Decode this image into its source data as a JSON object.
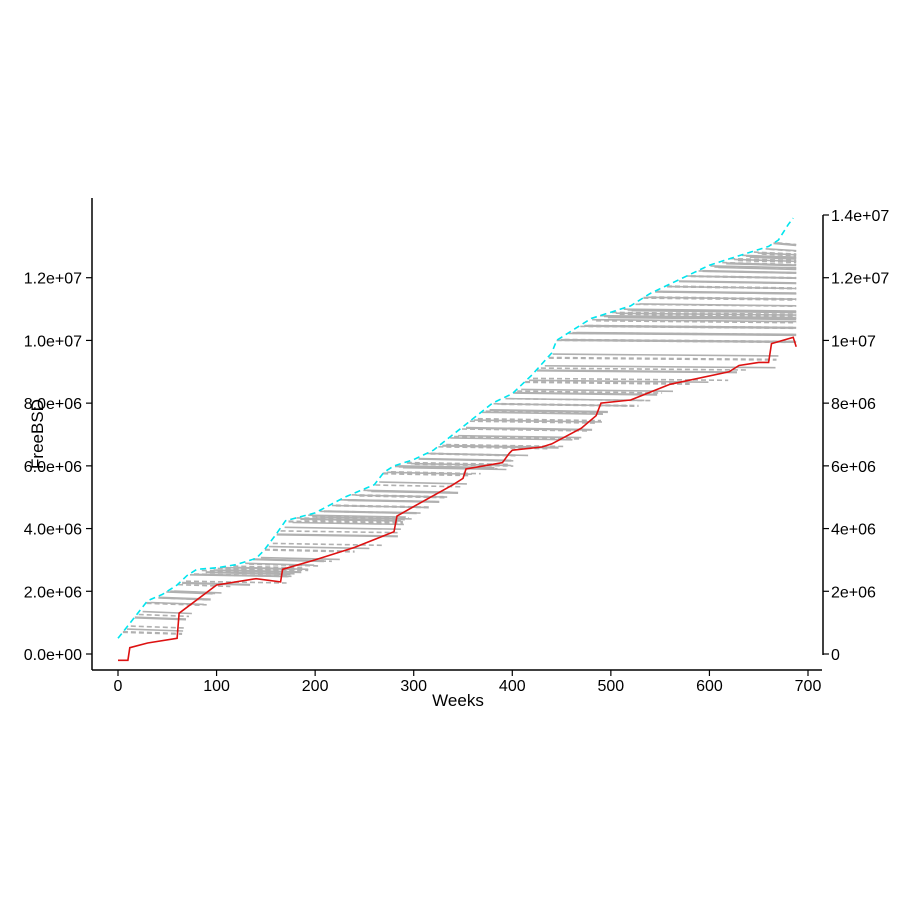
{
  "chart_data": {
    "type": "line",
    "title": "",
    "xlabel": "Weeks",
    "ylabel": "FreeBSD",
    "xlim": [
      0,
      700
    ],
    "ylim_left": [
      -600000,
      14500000
    ],
    "ylim_right": [
      -600000,
      14500000
    ],
    "x_ticks": [
      0,
      100,
      200,
      300,
      400,
      500,
      600,
      700
    ],
    "x_tick_labels": [
      "0",
      "100",
      "200",
      "300",
      "400",
      "500",
      "600",
      "700"
    ],
    "y_left_ticks": [
      0,
      2000000,
      4000000,
      6000000,
      8000000,
      10000000,
      12000000
    ],
    "y_left_tick_labels": [
      "0.0e+00",
      "2.0e+06",
      "4.0e+06",
      "6.0e+06",
      "8.0e+06",
      "1.0e+07",
      "1.2e+07"
    ],
    "y_right_ticks": [
      0,
      2000000,
      4000000,
      6000000,
      8000000,
      10000000,
      12000000,
      14000000
    ],
    "y_right_tick_labels": [
      "0",
      "2e+06",
      "4e+06",
      "6e+06",
      "8e+06",
      "1e+07",
      "1.2e+07",
      "1.4e+07"
    ],
    "grid": false,
    "legend": "none",
    "colors": {
      "cumulative": "#00e5ee",
      "release_steps": "#dd1111",
      "cohorts": "#b0b0b0",
      "axis": "#000000"
    },
    "series": [
      {
        "style": "dashed",
        "color": "#00e5ee",
        "x": [
          0,
          10,
          30,
          45,
          60,
          70,
          80,
          100,
          120,
          140,
          148,
          160,
          170,
          200,
          230,
          260,
          270,
          280,
          300,
          320,
          340,
          360,
          380,
          400,
          420,
          440,
          445,
          460,
          480,
          500,
          520,
          540,
          560,
          580,
          600,
          620,
          640,
          660,
          670,
          680,
          685
        ],
        "y": [
          500000,
          900000,
          1700000,
          1900000,
          2200000,
          2500000,
          2700000,
          2750000,
          2850000,
          3050000,
          3300000,
          3800000,
          4250000,
          4500000,
          5000000,
          5400000,
          5800000,
          6000000,
          6200000,
          6500000,
          7000000,
          7500000,
          8000000,
          8300000,
          8900000,
          9600000,
          10000000,
          10300000,
          10700000,
          10900000,
          11100000,
          11500000,
          11800000,
          12100000,
          12400000,
          12600000,
          12800000,
          13000000,
          13200000,
          13700000,
          13900000
        ]
      },
      {
        "style": "solid",
        "color": "#dd1111",
        "x": [
          0,
          10,
          12,
          30,
          60,
          62,
          100,
          140,
          165,
          167,
          200,
          240,
          280,
          283,
          300,
          340,
          350,
          353,
          390,
          397,
          400,
          430,
          440,
          470,
          485,
          490,
          520,
          560,
          620,
          630,
          650,
          660,
          663,
          685,
          688
        ],
        "y": [
          -200000,
          -200000,
          200000,
          350000,
          500000,
          1300000,
          2200000,
          2400000,
          2300000,
          2700000,
          3000000,
          3400000,
          3900000,
          4400000,
          4700000,
          5400000,
          5600000,
          5900000,
          6100000,
          6400000,
          6500000,
          6600000,
          6700000,
          7200000,
          7600000,
          8000000,
          8100000,
          8600000,
          9000000,
          9200000,
          9300000,
          9300000,
          9900000,
          10100000,
          9800000
        ]
      }
    ]
  }
}
